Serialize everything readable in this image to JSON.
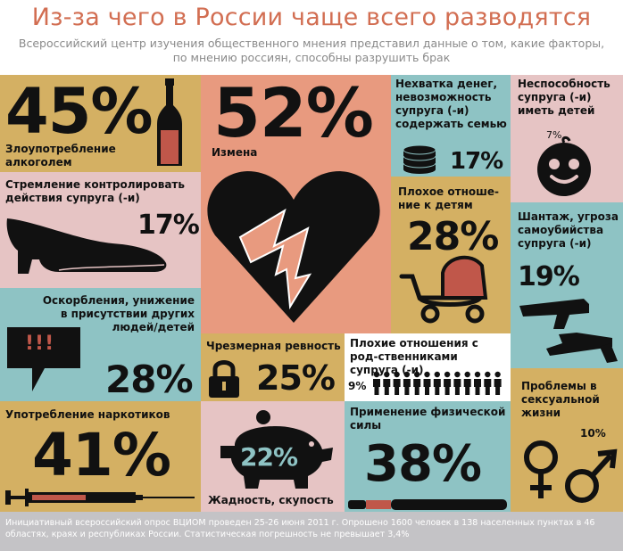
{
  "title": "Из-за чего в России чаще всего разводятся",
  "subtitle": "Всероссийский центр изучения общественного мнения представил данные о том, какие факторы, по мнению россиян, способны разрушить брак",
  "chart_data": {
    "type": "table",
    "categories": [
      "Измена",
      "Злоупотребление алкоголем",
      "Употребление наркотиков",
      "Применение физической силы",
      "Оскорбления, унижение в присутствии других людей/детей",
      "Плохое отноше-ние к детям",
      "Чрезмерная ревность",
      "Жадность, скупость",
      "Шантаж, угроза самоубийства супруга (-и)",
      "Нехватка денег, невозможность супруга (-и) содержать семью",
      "Стремление контролировать действия супруга (-и)",
      "Проблемы в сексуальной жизни",
      "Плохие отношения с родственниками супруга (-и)",
      "Неспособность супруга (-и) иметь детей"
    ],
    "values": [
      52,
      45,
      41,
      38,
      28,
      28,
      25,
      22,
      19,
      17,
      17,
      10,
      9,
      7
    ],
    "unit": "%"
  },
  "tiles": {
    "alcohol": {
      "value": "45%",
      "label": "Злоупотребление алкоголем"
    },
    "cheating": {
      "value": "52%",
      "label": "Измена"
    },
    "money": {
      "label": "Нехватка денег, невозможность супруга (-и) содержать семью",
      "value": "17%"
    },
    "children": {
      "label": "Неспособность супруга (-и) иметь детей",
      "value": "7%"
    },
    "control": {
      "label": "Стремление контролировать действия супруга (-и)",
      "value": "17%"
    },
    "kids": {
      "label": "Плохое отноше-ние к детям",
      "value": "28%"
    },
    "blackmail": {
      "label": "Шантаж, угроза самоубийства супруга (-и)",
      "value": "19%"
    },
    "insults": {
      "label": "Оскорбления, унижение в присутствии других людей/детей",
      "value": "28%",
      "bubble": "!!!"
    },
    "jealousy": {
      "label": "Чрезмерная ревность",
      "value": "25%"
    },
    "relatives": {
      "label": "Плохие отношения с род-ственниками супруга (-и)",
      "value": "9%"
    },
    "sex": {
      "label": "Проблемы в сексуальной жизни",
      "value": "10%"
    },
    "drugs": {
      "label": "Употребление наркотиков",
      "value": "41%"
    },
    "greed": {
      "label": "Жадность, скупость",
      "value": "22%"
    },
    "violence": {
      "label": "Применение физической силы",
      "value": "38%"
    }
  },
  "footer": "Инициативный всероссийский опрос ВЦИОМ проведен 25-26 июня 2011 г. Опрошено 1600 человек в 138 населенных пунктах в 46 областях, краях и республиках России. Статистическая погрешность не превышает 3,4%",
  "colors": {
    "tan": "#d4b063",
    "pink": "#e6c4c4",
    "teal": "#8ec3c4",
    "salmon": "#e89a7f",
    "title": "#d26e52",
    "dark": "#111111",
    "footer": "#c4c3c6"
  }
}
